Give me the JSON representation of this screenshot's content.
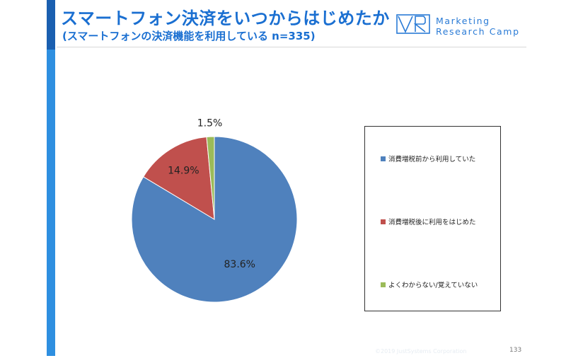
{
  "header": {
    "title": "スマートフォン決済をいつからはじめたか",
    "subtitle": "(スマートフォンの決済機能を利用している n=335)"
  },
  "logo": {
    "line1": "Marketing",
    "line2": "Research Camp",
    "color": "#2a7bd6"
  },
  "chart_data": {
    "type": "pie",
    "categories": [
      "消費増税前から利用していた",
      "消費増税後に利用をはじめた",
      "よくわからない/覚えていない"
    ],
    "values": [
      83.6,
      14.9,
      1.5
    ],
    "data_labels": [
      "83.6%",
      "14.9%",
      "1.5%"
    ],
    "colors": [
      "#4f81bd",
      "#c0504d",
      "#9bbb59"
    ],
    "legend_position": "right",
    "start_angle_deg": 0,
    "direction": "clockwise"
  },
  "footer": {
    "copyright": "©2019 JustSystems Corporation",
    "page_number": "133"
  }
}
